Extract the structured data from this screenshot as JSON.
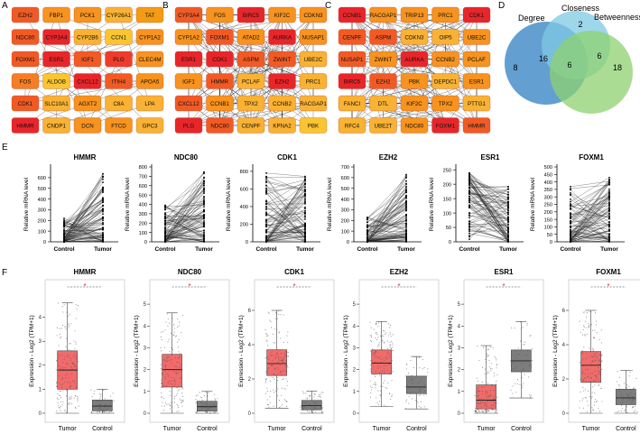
{
  "panels": {
    "A": {
      "letter": "A",
      "nodes": [
        [
          "EZH2",
          "FBP1",
          "PCK1",
          "CYP26A1",
          "TAT"
        ],
        [
          "NDC80",
          "CYP3A4",
          "CYP2B6",
          "CCN1",
          "CYP1A2"
        ],
        [
          "FOXM1",
          "ESR1",
          "IGF1",
          "PLG",
          "CLEC4M"
        ],
        [
          "FOS",
          "ALDOB",
          "CXCL12",
          "ITIH4",
          "APOA5"
        ],
        [
          "CDK1",
          "SLC10A1",
          "AGXT2",
          "C8A",
          "LPA"
        ],
        [
          "HMMR",
          "CNDP1",
          "DCN",
          "FTCD",
          "GPC3"
        ]
      ],
      "colors": [
        [
          "#f15a24",
          "#f7931e",
          "#f7931e",
          "#f9b233",
          "#f39c12"
        ],
        [
          "#f15a24",
          "#e8262a",
          "#f9b233",
          "#fbc531",
          "#f7931e"
        ],
        [
          "#f15a24",
          "#e8262a",
          "#f15a24",
          "#ef3b2c",
          "#f7931e"
        ],
        [
          "#f57e25",
          "#fbc531",
          "#e8262a",
          "#f15a24",
          "#f7931e"
        ],
        [
          "#f15a24",
          "#f9b233",
          "#f7931e",
          "#f9b233",
          "#f9b233"
        ],
        [
          "#e8262a",
          "#f9b233",
          "#f7931e",
          "#f7931e",
          "#f9b233"
        ]
      ]
    },
    "B": {
      "letter": "B",
      "nodes": [
        [
          "CYP3A4",
          "FOS",
          "BIRC5",
          "KIF2C",
          "CDKN3"
        ],
        [
          "CYP1A2",
          "FOXM1",
          "ATAD2",
          "AURKA",
          "NUSAP1"
        ],
        [
          "ESR1",
          "CDK1",
          "ASPM",
          "ZWINT",
          "UBE2C"
        ],
        [
          "IGF1",
          "HMMR",
          "PCLAF",
          "EZH2",
          "PRC1"
        ],
        [
          "CXCL12",
          "CCNB1",
          "TPX2",
          "CCNB2",
          "RACGAP1"
        ],
        [
          "PLG",
          "NDC80",
          "CENPF",
          "KPNA2",
          "PBK"
        ]
      ],
      "colors": [
        [
          "#f15a24",
          "#f7931e",
          "#e8262a",
          "#f7931e",
          "#f7931e"
        ],
        [
          "#f7931e",
          "#f15a24",
          "#f7931e",
          "#e8262a",
          "#f7931e"
        ],
        [
          "#e8262a",
          "#e8262a",
          "#f15a24",
          "#f15a24",
          "#f9b233"
        ],
        [
          "#f7931e",
          "#f15a24",
          "#f9b233",
          "#e8262a",
          "#f9b233"
        ],
        [
          "#f15a24",
          "#f7931e",
          "#f9b233",
          "#f9b233",
          "#f9b233"
        ],
        [
          "#e8262a",
          "#f15a24",
          "#f9b233",
          "#f9b233",
          "#fbc531"
        ]
      ]
    },
    "C": {
      "letter": "C",
      "nodes": [
        [
          "CCNB1",
          "RACGAP1",
          "TRIP13",
          "PRC1",
          "CDK1"
        ],
        [
          "CENPF",
          "ASPM",
          "CDKN3",
          "OIP5",
          "UBE2C"
        ],
        [
          "NUSAP1",
          "ZWINT",
          "AURKA",
          "CCNB2",
          "PCLAF"
        ],
        [
          "BIRC5",
          "EZH2",
          "PBK",
          "DEPDC1",
          "ESR1"
        ],
        [
          "FANCI",
          "DTL",
          "KIF2C",
          "TPX2",
          "PTTG1"
        ],
        [
          "RFC4",
          "UBE2T",
          "NDC80",
          "FOXM1",
          "HMMR"
        ]
      ],
      "colors": [
        [
          "#e8262a",
          "#f7931e",
          "#f7931e",
          "#f7931e",
          "#e8262a"
        ],
        [
          "#f15a24",
          "#f15a24",
          "#f9b233",
          "#f9b233",
          "#f7931e"
        ],
        [
          "#f15a24",
          "#f7931e",
          "#e8262a",
          "#f7931e",
          "#f7931e"
        ],
        [
          "#e8262a",
          "#f15a24",
          "#f7931e",
          "#f9b233",
          "#f7931e"
        ],
        [
          "#f9b233",
          "#f9b233",
          "#f7931e",
          "#f7931e",
          "#f9b233"
        ],
        [
          "#f9b233",
          "#f9b233",
          "#f7931e",
          "#e8262a",
          "#f15a24"
        ]
      ]
    },
    "D": {
      "letter": "D",
      "labels": {
        "degree": "Degree",
        "closeness": "Closeness",
        "betweenness": "Betweenness"
      },
      "counts": {
        "degree_only": "8",
        "closeness_only": "2",
        "betweenness_only": "18",
        "degree_closeness": "16",
        "closeness_betweenness": "6",
        "all_three": "6"
      },
      "colors": {
        "degree": "#2f7fc1",
        "closeness": "#7ec8e3",
        "betweenness": "#8dd26f"
      }
    },
    "E": {
      "letter": "E"
    },
    "F": {
      "letter": "F"
    }
  },
  "chart_data": [
    {
      "type": "line",
      "title": "HMMR",
      "ylabel": "Relative mRNA level",
      "categories": [
        "Control",
        "Tumor"
      ],
      "yticks": [
        0,
        100,
        200,
        300,
        400,
        500,
        600
      ],
      "ylim": [
        0,
        700
      ],
      "series_summary": {
        "control_range": [
          0,
          230
        ],
        "tumor_range": [
          0,
          650
        ]
      }
    },
    {
      "type": "line",
      "title": "NDC80",
      "ylabel": "Relative mRNA level",
      "categories": [
        "Control",
        "Tumor"
      ],
      "yticks": [
        0,
        100,
        200,
        300,
        400,
        500,
        600,
        700,
        800
      ],
      "ylim": [
        0,
        800
      ],
      "series_summary": {
        "control_range": [
          0,
          400
        ],
        "tumor_range": [
          0,
          760
        ]
      }
    },
    {
      "type": "line",
      "title": "CDK1",
      "ylabel": "Relative mRNA level",
      "categories": [
        "Control",
        "Tumor"
      ],
      "yticks": [
        0,
        200,
        400,
        600,
        800
      ],
      "ylim": [
        0,
        850
      ],
      "series_summary": {
        "control_range": [
          0,
          780
        ],
        "tumor_range": [
          0,
          750
        ]
      }
    },
    {
      "type": "line",
      "title": "EZH2",
      "ylabel": "Relative mRNA level",
      "categories": [
        "Control",
        "Tumor"
      ],
      "yticks": [
        0,
        100,
        200,
        300,
        400,
        500,
        600,
        700
      ],
      "ylim": [
        0,
        700
      ],
      "series_summary": {
        "control_range": [
          0,
          240
        ],
        "tumor_range": [
          0,
          640
        ]
      }
    },
    {
      "type": "line",
      "title": "ESR1",
      "ylabel": "Relative mRNA level",
      "categories": [
        "Control",
        "Tumor"
      ],
      "yticks": [
        0,
        50,
        100,
        150,
        200,
        250
      ],
      "ylim": [
        0,
        260
      ],
      "series_summary": {
        "control_range": [
          0,
          240
        ],
        "tumor_range": [
          0,
          200
        ]
      }
    },
    {
      "type": "line",
      "title": "FOXM1",
      "ylabel": "Relative mRNA level",
      "categories": [
        "Control",
        "Tumor"
      ],
      "yticks": [
        0,
        50,
        100,
        150,
        200,
        250,
        300,
        350,
        400,
        450,
        500
      ],
      "ylim": [
        0,
        500
      ],
      "series_summary": {
        "control_range": [
          0,
          380
        ],
        "tumor_range": [
          0,
          460
        ]
      }
    },
    {
      "type": "box",
      "title": "HMMR",
      "ylabel": "Expression - Log2 (TPM+1)",
      "categories": [
        "Tumor",
        "Control"
      ],
      "yticks": [
        0,
        1,
        2,
        3,
        4
      ],
      "ylim": [
        0,
        5
      ],
      "significance": "*",
      "boxes": [
        {
          "name": "Tumor",
          "q1": 1.0,
          "median": 1.8,
          "q3": 2.6,
          "min": 0.0,
          "max": 4.6,
          "color": "#f26b6b"
        },
        {
          "name": "Control",
          "q1": 0.1,
          "median": 0.3,
          "q3": 0.55,
          "min": 0.0,
          "max": 1.0,
          "color": "#7d7d7d"
        }
      ]
    },
    {
      "type": "box",
      "title": "NDC80",
      "ylabel": "Expression - Log2 (TPM+1)",
      "categories": [
        "Tumor",
        "Control"
      ],
      "yticks": [
        0,
        1,
        2,
        3,
        4,
        5
      ],
      "ylim": [
        0,
        5.5
      ],
      "significance": "*",
      "boxes": [
        {
          "name": "Tumor",
          "q1": 1.2,
          "median": 2.0,
          "q3": 2.7,
          "min": 0.0,
          "max": 4.6,
          "color": "#f26b6b"
        },
        {
          "name": "Control",
          "q1": 0.1,
          "median": 0.3,
          "q3": 0.55,
          "min": 0.0,
          "max": 1.0,
          "color": "#7d7d7d"
        }
      ]
    },
    {
      "type": "box",
      "title": "CDK1",
      "ylabel": "Expression - Log2 (TPM+1)",
      "categories": [
        "Tumor",
        "Control"
      ],
      "yticks": [
        0,
        2,
        4,
        6
      ],
      "ylim": [
        0,
        7
      ],
      "significance": "*",
      "boxes": [
        {
          "name": "Tumor",
          "q1": 2.2,
          "median": 2.9,
          "q3": 3.7,
          "min": 0.3,
          "max": 6.0,
          "color": "#f26b6b"
        },
        {
          "name": "Control",
          "q1": 0.2,
          "median": 0.45,
          "q3": 0.75,
          "min": 0.0,
          "max": 1.3,
          "color": "#7d7d7d"
        }
      ]
    },
    {
      "type": "box",
      "title": "EZH2",
      "ylabel": "Expression - Log2 (TPM+1)",
      "categories": [
        "Tumor",
        "Control"
      ],
      "yticks": [
        0,
        1,
        2,
        3,
        4,
        5
      ],
      "ylim": [
        0,
        5.5
      ],
      "significance": "*",
      "boxes": [
        {
          "name": "Tumor",
          "q1": 1.8,
          "median": 2.3,
          "q3": 2.9,
          "min": 0.3,
          "max": 4.2,
          "color": "#f26b6b"
        },
        {
          "name": "Control",
          "q1": 0.9,
          "median": 1.2,
          "q3": 1.7,
          "min": 0.2,
          "max": 2.6,
          "color": "#7d7d7d"
        }
      ]
    },
    {
      "type": "box",
      "title": "ESR1",
      "ylabel": "Expression - Log2 (TPM+1)",
      "categories": [
        "Tumor",
        "Control"
      ],
      "yticks": [
        0,
        1,
        2,
        3,
        4,
        5
      ],
      "ylim": [
        0,
        5.5
      ],
      "significance": "*",
      "boxes": [
        {
          "name": "Tumor",
          "q1": 0.2,
          "median": 0.6,
          "q3": 1.3,
          "min": 0.0,
          "max": 3.1,
          "color": "#f26b6b"
        },
        {
          "name": "Control",
          "q1": 1.9,
          "median": 2.4,
          "q3": 2.9,
          "min": 0.7,
          "max": 4.2,
          "color": "#7d7d7d"
        }
      ]
    },
    {
      "type": "box",
      "title": "FOXM1",
      "ylabel": "Expression - Log2 (TPM+1)",
      "categories": [
        "Tumor",
        "Control"
      ],
      "yticks": [
        0,
        2,
        4,
        6
      ],
      "ylim": [
        0,
        7
      ],
      "significance": "*",
      "boxes": [
        {
          "name": "Tumor",
          "q1": 1.8,
          "median": 2.8,
          "q3": 3.6,
          "min": 0.0,
          "max": 6.0,
          "color": "#f26b6b"
        },
        {
          "name": "Control",
          "q1": 0.5,
          "median": 0.9,
          "q3": 1.4,
          "min": 0.0,
          "max": 2.5,
          "color": "#7d7d7d"
        }
      ]
    }
  ]
}
